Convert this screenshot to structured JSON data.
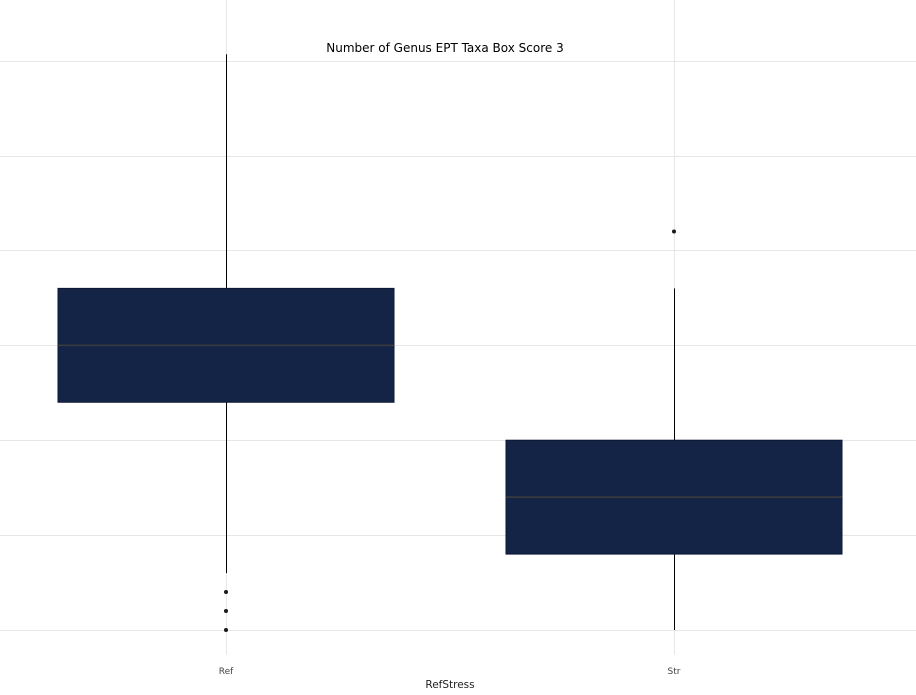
{
  "chart_data": {
    "type": "box",
    "title": "Number of Genus EPT Taxa Box Score 3",
    "xlabel": "RefStress",
    "ylabel": "",
    "categories": [
      "Ref",
      "Str"
    ],
    "ylim": [
      0,
      9.5
    ],
    "y_gridlines": [
      0,
      1.5,
      3,
      4.5,
      6,
      7.5,
      9
    ],
    "y_tick_labels_shown": false,
    "grid": true,
    "legend": "none",
    "boxes": [
      {
        "category": "Ref",
        "whisker_low": 0.9,
        "q1": 3.6,
        "median": 4.5,
        "q3": 5.4,
        "whisker_high": 9.1,
        "outliers": [
          0.6,
          0.3,
          0.0
        ]
      },
      {
        "category": "Str",
        "whisker_low": 0.0,
        "q1": 1.2,
        "median": 2.1,
        "q3": 3.0,
        "whisker_high": 5.4,
        "outliers": [
          6.3
        ]
      }
    ],
    "colors": {
      "box_fill": "#142447",
      "median_line": "#3d3d3d",
      "whisker": "#000000",
      "outlier": "#1a1a1a",
      "grid": "#e6e6e6"
    }
  }
}
